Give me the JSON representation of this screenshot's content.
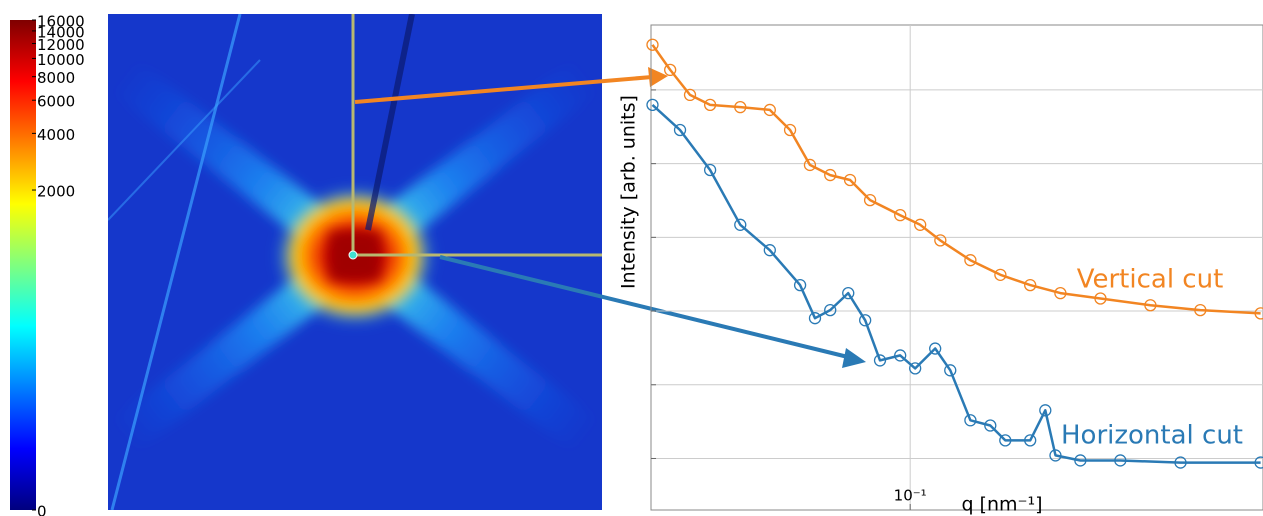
{
  "chart_data": [
    {
      "type": "heatmap",
      "colormap": "jet",
      "colorbar_scale": "asinh",
      "colorbar_lim": [
        0,
        16000
      ],
      "colorbar_ticks": [
        0,
        2000,
        4000,
        6000,
        8000,
        10000,
        12000,
        14000,
        16000
      ]
    },
    {
      "type": "line",
      "x_label": "q [nm⁻¹]",
      "y_label": "Intensity [arb. units]",
      "xscale": "log",
      "yscale": "log",
      "grid": true,
      "xlim": [
        0.025,
        0.66
      ],
      "xticks": [
        {
          "value": 0.1,
          "label": "10⁻¹"
        }
      ],
      "ylim": [
        0.2,
        760000
      ],
      "yticks": [
        1,
        10,
        100,
        1000,
        10000,
        100000
      ],
      "ytick_labels_shown": false,
      "series": [
        {
          "name": "Vertical cut",
          "color": "#f28522",
          "x": [
            0.0252,
            0.0277,
            0.0308,
            0.0343,
            0.0403,
            0.0472,
            0.0526,
            0.0585,
            0.0652,
            0.0725,
            0.0807,
            0.0948,
            0.1055,
            0.1175,
            0.138,
            0.162,
            0.19,
            0.2233,
            0.2767,
            0.3614,
            0.472,
            0.6516
          ],
          "values": [
            410000,
            187000,
            85600,
            62700,
            58400,
            53500,
            28600,
            9600,
            7000,
            6000,
            3200,
            2000,
            1480,
            910,
            490,
            310,
            225,
            175,
            148,
            120,
            103,
            93
          ]
        },
        {
          "name": "Horizontal cut",
          "color": "#2a7ab5",
          "x": [
            0.0252,
            0.0292,
            0.0343,
            0.0403,
            0.0472,
            0.0555,
            0.0601,
            0.0652,
            0.0718,
            0.0786,
            0.0851,
            0.0948,
            0.1027,
            0.1143,
            0.1239,
            0.138,
            0.1535,
            0.1663,
            0.19,
            0.206,
            0.2175,
            0.2485,
            0.3077,
            0.4246,
            0.6516
          ],
          "values": [
            62700,
            28600,
            8200,
            1480,
            670,
            225,
            80,
            103,
            175,
            75,
            21.4,
            25,
            16.7,
            31,
            15.7,
            3.3,
            2.8,
            1.76,
            1.76,
            4.5,
            1.1,
            0.94,
            0.94,
            0.88,
            0.88
          ]
        }
      ]
    }
  ]
}
